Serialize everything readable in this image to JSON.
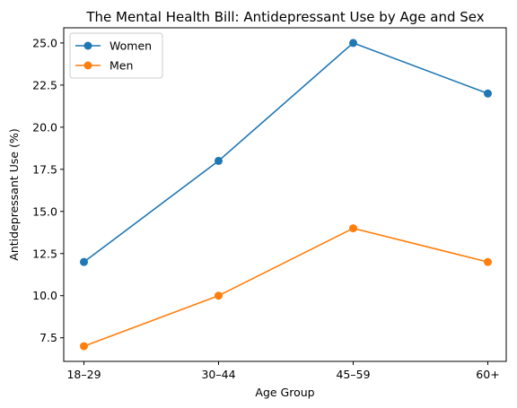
{
  "chart_data": {
    "type": "line",
    "title": "The Mental Health Bill: Antidepressant Use by Age and Sex",
    "xlabel": "Age Group",
    "ylabel": "Antidepressant Use (%)",
    "categories": [
      "18–29",
      "30–44",
      "45–59",
      "60+"
    ],
    "ylim": [
      6.1,
      25.9
    ],
    "yticks": [
      7.5,
      10.0,
      12.5,
      15.0,
      17.5,
      20.0,
      22.5,
      25.0
    ],
    "ytick_labels": [
      "7.5",
      "10.0",
      "12.5",
      "15.0",
      "17.5",
      "20.0",
      "22.5",
      "25.0"
    ],
    "grid": false,
    "legend_position": "top-left",
    "series": [
      {
        "name": "Women",
        "values": [
          12,
          18,
          25,
          22
        ],
        "color": "#1f77b4",
        "marker": "circle"
      },
      {
        "name": "Men",
        "values": [
          7,
          10,
          14,
          12
        ],
        "color": "#ff7f0e",
        "marker": "circle"
      }
    ]
  }
}
